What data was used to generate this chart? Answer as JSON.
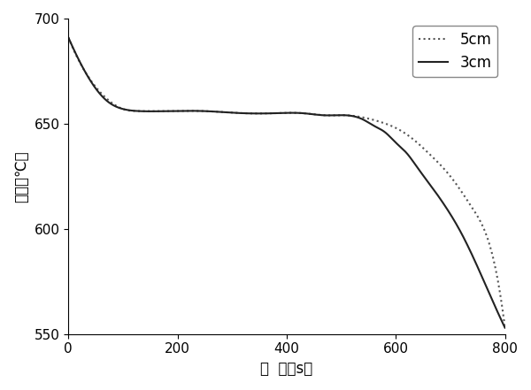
{
  "title": "",
  "xlabel": "时  间（s）",
  "ylabel": "温度（℃）",
  "xlim": [
    0,
    800
  ],
  "ylim": [
    550,
    700
  ],
  "xticks": [
    0,
    200,
    400,
    600,
    800
  ],
  "yticks": [
    550,
    600,
    650,
    700
  ],
  "legend_5cm": "5cm",
  "legend_3cm": "3cm",
  "line_color_5cm": "#555555",
  "line_color_3cm": "#222222",
  "background_color": "#ffffff",
  "curve_5cm_x": [
    0,
    30,
    70,
    100,
    130,
    180,
    250,
    320,
    380,
    430,
    470,
    510,
    540,
    570,
    600,
    630,
    660,
    700,
    740,
    770,
    800
  ],
  "curve_5cm_y": [
    691,
    675,
    662,
    657,
    656,
    656,
    656,
    655,
    655,
    655,
    654,
    654,
    653,
    651,
    648,
    643,
    636,
    625,
    610,
    594,
    553
  ],
  "curve_3cm_x": [
    0,
    30,
    70,
    100,
    130,
    180,
    250,
    320,
    380,
    430,
    470,
    510,
    540,
    560,
    580,
    600,
    620,
    640,
    660,
    690,
    720,
    760,
    800
  ],
  "curve_3cm_y": [
    691,
    675,
    661,
    657,
    656,
    656,
    656,
    655,
    655,
    655,
    654,
    654,
    652,
    649,
    646,
    641,
    636,
    629,
    622,
    611,
    598,
    576,
    553
  ]
}
